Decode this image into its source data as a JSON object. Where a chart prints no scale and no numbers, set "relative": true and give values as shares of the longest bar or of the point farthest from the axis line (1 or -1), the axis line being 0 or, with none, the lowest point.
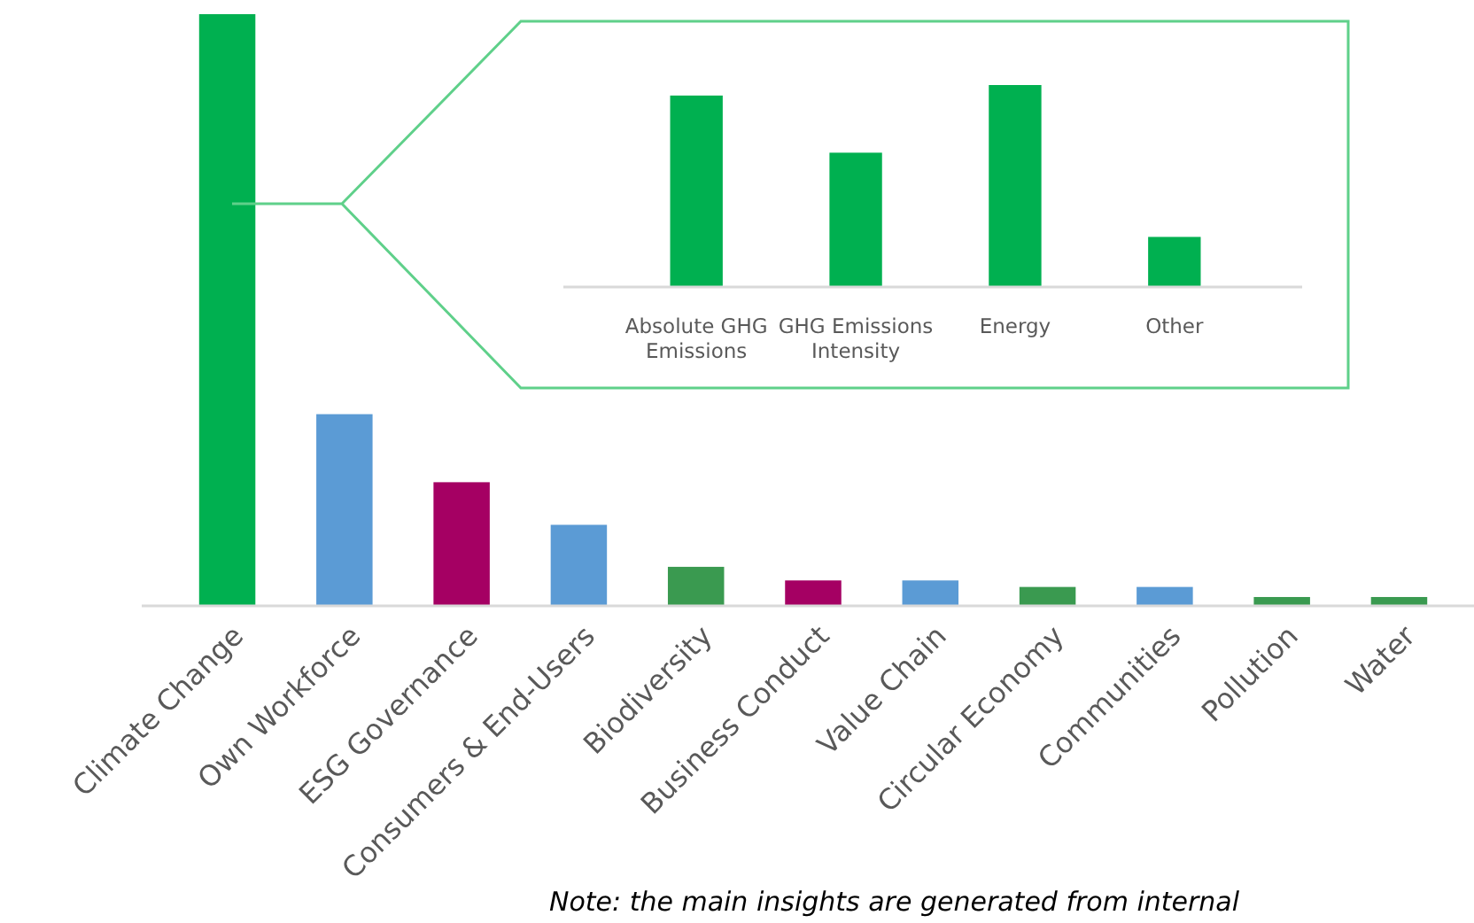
{
  "chart_data": [
    {
      "type": "bar",
      "relative": true,
      "categories": [
        "Climate Change",
        "Own Workforce",
        "ESG Governance",
        "Consumers & End-Users",
        "Biodiversity",
        "Business Conduct",
        "Value Chain",
        "Circular Economy",
        "Communities",
        "Pollution",
        "Water"
      ],
      "values": [
        1,
        0.324,
        0.209,
        0.137,
        0.066,
        0.043,
        0.043,
        0.032,
        0.032,
        0.015,
        0.015
      ],
      "colors": [
        "#00b050",
        "#5b9bd5",
        "#a50063",
        "#5b9bd5",
        "#3a9a50",
        "#a50063",
        "#5b9bd5",
        "#3a9a50",
        "#5b9bd5",
        "#3a9a50",
        "#3a9a50"
      ],
      "annotations": [
        "Note: the main insights are generated from internal"
      ]
    },
    {
      "type": "bar",
      "relative": true,
      "categories": [
        "Absolute GHG Emissions",
        "GHG Emissions Intensity",
        "Energy",
        "Other"
      ],
      "values": [
        0.948,
        0.665,
        1,
        0.248
      ],
      "color": "#00b050"
    }
  ]
}
